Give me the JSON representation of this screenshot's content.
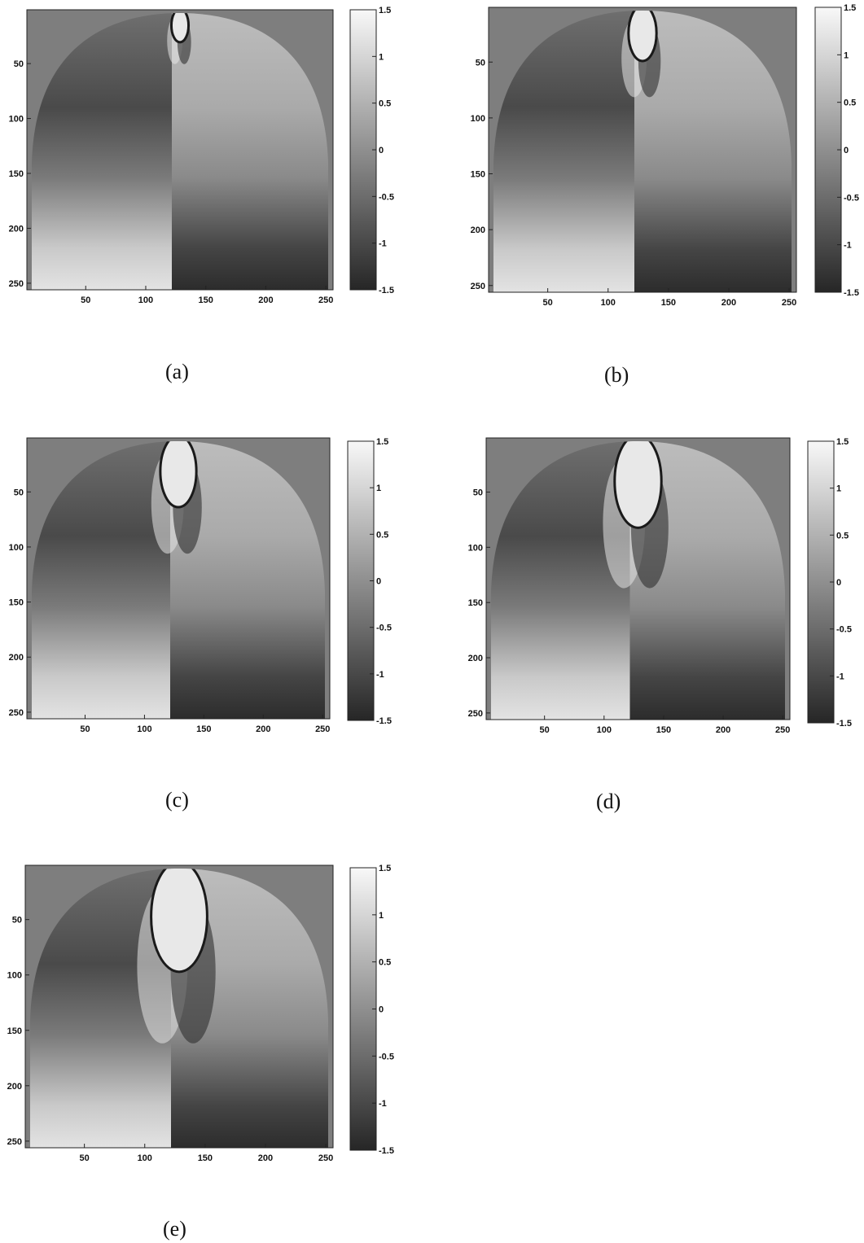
{
  "colors": {
    "background": "#ffffff",
    "outside": "#7e7e7e",
    "axis": "#222222"
  },
  "colormap": "gray",
  "chart_data": [
    {
      "type": "heatmap",
      "caption": "(a)",
      "xticks": [
        "50",
        "100",
        "150",
        "200",
        "250"
      ],
      "yticks": [
        "50",
        "100",
        "150",
        "200",
        "250"
      ],
      "xlim": [
        1,
        256
      ],
      "ylim": [
        1,
        256
      ],
      "colorbar": {
        "range": [
          -1.5,
          1.5
        ],
        "ticks": [
          "1.5",
          "1",
          "0.5",
          "0",
          "-0.5",
          "-1",
          "-1.5"
        ]
      },
      "lesion_extent": 0.08
    },
    {
      "type": "heatmap",
      "caption": "(b)",
      "xticks": [
        "50",
        "100",
        "150",
        "200",
        "250"
      ],
      "yticks": [
        "50",
        "100",
        "150",
        "200",
        "250"
      ],
      "xlim": [
        1,
        256
      ],
      "ylim": [
        1,
        256
      ],
      "colorbar": {
        "range": [
          -1.5,
          1.5
        ],
        "ticks": [
          "1.5",
          "1",
          "0.5",
          "0",
          "-0.5",
          "-1",
          "-1.5"
        ]
      },
      "lesion_extent": 0.13
    },
    {
      "type": "heatmap",
      "caption": "(c)",
      "xticks": [
        "50",
        "100",
        "150",
        "200",
        "250"
      ],
      "yticks": [
        "50",
        "100",
        "150",
        "200",
        "250"
      ],
      "xlim": [
        1,
        256
      ],
      "ylim": [
        1,
        256
      ],
      "colorbar": {
        "range": [
          -1.5,
          1.5
        ],
        "ticks": [
          "1.5",
          "1",
          "0.5",
          "0",
          "-0.5",
          "-1",
          "-1.5"
        ]
      },
      "lesion_extent": 0.17
    },
    {
      "type": "heatmap",
      "caption": "(d)",
      "xticks": [
        "50",
        "100",
        "150",
        "200",
        "250"
      ],
      "yticks": [
        "50",
        "100",
        "150",
        "200",
        "250"
      ],
      "xlim": [
        1,
        256
      ],
      "ylim": [
        1,
        256
      ],
      "colorbar": {
        "range": [
          -1.5,
          1.5
        ],
        "ticks": [
          "1.5",
          "1",
          "0.5",
          "0",
          "-0.5",
          "-1",
          "-1.5"
        ]
      },
      "lesion_extent": 0.22
    },
    {
      "type": "heatmap",
      "caption": "(e)",
      "xticks": [
        "50",
        "100",
        "150",
        "200",
        "250"
      ],
      "yticks": [
        "50",
        "100",
        "150",
        "200",
        "250"
      ],
      "xlim": [
        1,
        256
      ],
      "ylim": [
        1,
        256
      ],
      "colorbar": {
        "range": [
          -1.5,
          1.5
        ],
        "ticks": [
          "1.5",
          "1",
          "0.5",
          "0",
          "-0.5",
          "-1",
          "-1.5"
        ]
      },
      "lesion_extent": 0.26
    }
  ]
}
